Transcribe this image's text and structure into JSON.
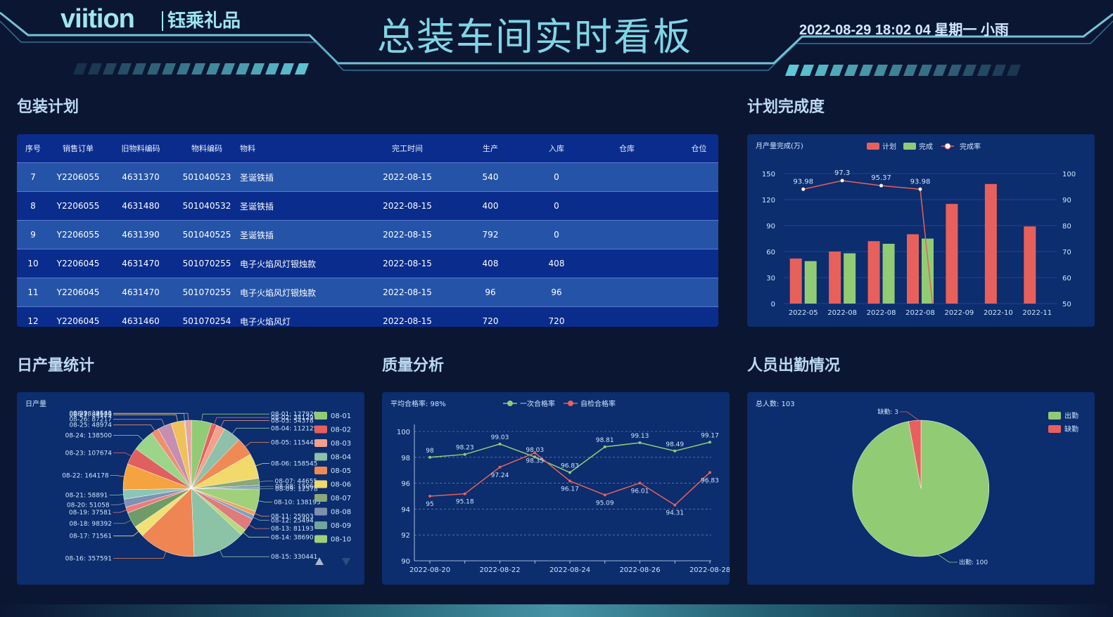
{
  "header": {
    "logo": "viition",
    "logo_cn": "钰乘礼品",
    "title": "总装车间实时看板",
    "datetime": "2022-08-29 18:02 04 星期一 小雨"
  },
  "sections": {
    "packing_plan": "包装计划",
    "plan_completion": "计划完成度",
    "daily_output": "日产量统计",
    "quality": "质量分析",
    "attendance": "人员出勤情况"
  },
  "colors": {
    "red": "#e8605c",
    "green": "#91cc75",
    "accent": "#7fd6e6"
  },
  "packing_table": {
    "headers": [
      "序号",
      "销售订单",
      "旧物料编码",
      "物料编码",
      "物料",
      "完工时间",
      "生产",
      "入库",
      "仓库",
      "仓位"
    ],
    "rows": [
      [
        "7",
        "Y2206055",
        "4631370",
        "501040523",
        "圣诞铁插",
        "2022-08-15",
        "540",
        "0",
        "",
        ""
      ],
      [
        "8",
        "Y2206055",
        "4631480",
        "501040532",
        "圣诞铁插",
        "2022-08-15",
        "400",
        "0",
        "",
        ""
      ],
      [
        "9",
        "Y2206055",
        "4631390",
        "501040525",
        "圣诞铁插",
        "2022-08-15",
        "792",
        "0",
        "",
        ""
      ],
      [
        "10",
        "Y2206045",
        "4631470",
        "501070255",
        "电子火焰风灯银烛款",
        "2022-08-15",
        "408",
        "408",
        "",
        ""
      ],
      [
        "11",
        "Y2206045",
        "4631470",
        "501070255",
        "电子火焰风灯银烛款",
        "2022-08-15",
        "96",
        "96",
        "",
        ""
      ],
      [
        "12",
        "Y2206045",
        "4631460",
        "501070254",
        "电子火焰风灯",
        "2022-08-15",
        "720",
        "720",
        "",
        ""
      ]
    ]
  },
  "chart_data": [
    {
      "type": "bar",
      "title": "月产量完成(万)",
      "categories": [
        "2022-05",
        "2022-08",
        "2022-08",
        "2022-08",
        "2022-09",
        "2022-10",
        "2022-11"
      ],
      "series": [
        {
          "name": "计划",
          "type": "bar",
          "values": [
            52,
            60,
            72,
            80,
            115,
            138,
            89
          ]
        },
        {
          "name": "完成",
          "type": "bar",
          "values": [
            49,
            58,
            69,
            75,
            null,
            null,
            null
          ]
        },
        {
          "name": "完成率",
          "type": "line",
          "values": [
            93.98,
            97.3,
            95.37,
            93.98,
            50,
            null,
            null
          ],
          "labels": [
            "93.98",
            "97.3",
            "95.37",
            "93.98",
            "",
            "",
            ""
          ]
        }
      ],
      "ylim": [
        0,
        150
      ],
      "yticks": [
        "0",
        "30",
        "60",
        "90",
        "120",
        "150"
      ],
      "y2lim": [
        50,
        100
      ],
      "y2ticks": [
        "50",
        "60",
        "70",
        "80",
        "90",
        "100"
      ],
      "legend": "top-center"
    },
    {
      "type": "pie",
      "title": "日产量",
      "slices": [
        {
          "label": "08-01",
          "value": 127920
        },
        {
          "label": "08-02",
          "value": 34129
        },
        {
          "label": "08-03",
          "value": 54378
        },
        {
          "label": "08-04",
          "value": 112125
        },
        {
          "label": "08-05",
          "value": 115443
        },
        {
          "label": "08-06",
          "value": 158545
        },
        {
          "label": "08-07",
          "value": 44655
        },
        {
          "label": "08-08",
          "value": 15060
        },
        {
          "label": "08-09",
          "value": 12578
        },
        {
          "label": "08-10",
          "value": 138193
        },
        {
          "label": "08-11",
          "value": 25903
        },
        {
          "label": "08-12",
          "value": 25494
        },
        {
          "label": "08-13",
          "value": 81193
        },
        {
          "label": "08-14",
          "value": 38690
        },
        {
          "label": "08-15",
          "value": 330441
        },
        {
          "label": "08-16",
          "value": 357591
        },
        {
          "label": "08-17",
          "value": 71561
        },
        {
          "label": "08-18",
          "value": 98392
        },
        {
          "label": "08-19",
          "value": 37581
        },
        {
          "label": "08-20",
          "value": 51058
        },
        {
          "label": "08-21",
          "value": 58891
        },
        {
          "label": "08-22",
          "value": 164178
        },
        {
          "label": "08-23",
          "value": 107674
        },
        {
          "label": "08-24",
          "value": 138500
        },
        {
          "label": "08-25",
          "value": 48974
        },
        {
          "label": "08-26",
          "value": 87217
        },
        {
          "label": "08-27",
          "value": 84123
        },
        {
          "label": "08-28",
          "value": 4636
        },
        {
          "label": "08-29",
          "value": 39543
        }
      ],
      "labels": [
        "08-01: 127920",
        "08-02: 34129",
        "08-03: 54378",
        "08-04: 112125",
        "08-05: 115443",
        "08-06: 158545",
        "08-07: 44655",
        "08-08: 15060",
        "08-09: 12578",
        "08-10: 138193",
        "08-11: 25903",
        "08-12: 25494",
        "08-13: 81193",
        "08-14: 38690",
        "08-15: 330441",
        "08-16: 357591",
        "08-17: 71561",
        "08-18: 98392",
        "08-19: 37581",
        "08-20: 51058",
        "08-21: 58891",
        "08-22: 164178",
        "08-23: 107674",
        "08-24: 138500",
        "08-25: 48974",
        "08-26: 87217",
        "08-27: 84123",
        "08-28: 4636",
        "08-29: 39543"
      ],
      "legend_items": [
        "08-01",
        "08-02",
        "08-03",
        "08-04",
        "08-05",
        "08-06",
        "08-07",
        "08-08",
        "08-09",
        "08-10"
      ],
      "legend": "right"
    },
    {
      "type": "line",
      "title": "平均合格率: 98%",
      "x": [
        "2022-08-20",
        "2022-08-21",
        "2022-08-22",
        "2022-08-23",
        "2022-08-24",
        "2022-08-25",
        "2022-08-26",
        "2022-08-27",
        "2022-08-28"
      ],
      "xticks": [
        "2022-08-20",
        "2022-08-22",
        "2022-08-24",
        "2022-08-26",
        "2022-08-28"
      ],
      "series": [
        {
          "name": "一次合格率",
          "values": [
            98,
            98.23,
            99.03,
            98.03,
            96.83,
            98.81,
            99.13,
            98.49,
            99.17
          ]
        },
        {
          "name": "自检合格率",
          "values": [
            95,
            95.18,
            97.24,
            98.35,
            96.17,
            95.09,
            96.01,
            94.31,
            96.83
          ]
        }
      ],
      "ylim": [
        90,
        100
      ],
      "yticks": [
        "90",
        "92",
        "94",
        "96",
        "98",
        "100"
      ],
      "legend": "top-center"
    },
    {
      "type": "pie",
      "title": "总人数: 103",
      "slices": [
        {
          "label": "出勤",
          "value": 100
        },
        {
          "label": "缺勤",
          "value": 3
        }
      ],
      "slice_labels": [
        "出勤: 100",
        "缺勤: 3"
      ],
      "legend": "top-right"
    }
  ]
}
